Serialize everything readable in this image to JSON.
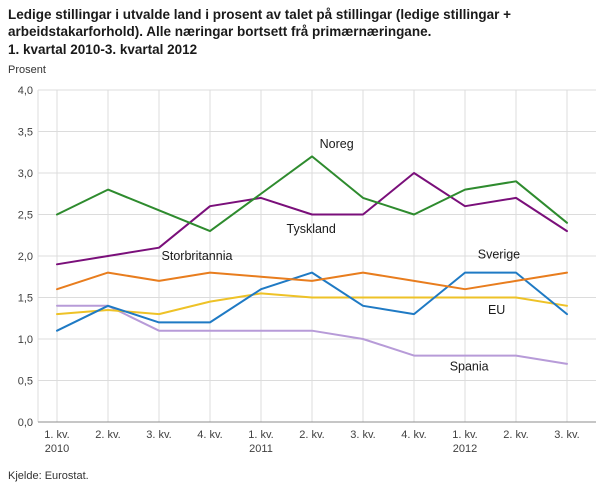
{
  "header": {
    "title": "Ledige stillingar i utvalde land i prosent av talet på stillingar (ledige stillingar +\narbeidstakarforhold). Alle næringar bortsett frå primærnæringane.\n1. kvartal 2010-3. kvartal 2012",
    "unit_label": "Prosent"
  },
  "footer": {
    "source": "Kjelde: Eurostat."
  },
  "chart_data": {
    "type": "line",
    "title": "Ledige stillingar i utvalde land i prosent av talet på stillingar (ledige stillingar + arbeidstakarforhold). Alle næringar bortsett frå primærnæringane. 1. kvartal 2010-3. kvartal 2012",
    "ylabel": "Prosent",
    "ylim": [
      0,
      4
    ],
    "grid": true,
    "legend_position": "inline-labels",
    "x_ticks": [
      {
        "label": "1. kv.",
        "year": "2010"
      },
      {
        "label": "2. kv."
      },
      {
        "label": "3. kv."
      },
      {
        "label": "4. kv."
      },
      {
        "label": "1. kv.",
        "year": "2011"
      },
      {
        "label": "2. kv."
      },
      {
        "label": "3. kv."
      },
      {
        "label": "4. kv."
      },
      {
        "label": "1. kv.",
        "year": "2012"
      },
      {
        "label": "2. kv."
      },
      {
        "label": "3. kv."
      }
    ],
    "y_ticks": {
      "values": [
        0,
        0.5,
        1.0,
        1.5,
        2.0,
        2.5,
        3.0,
        3.5,
        4.0
      ],
      "labels": [
        "0,0",
        "0,5",
        "1,0",
        "1,5",
        "2,0",
        "2,5",
        "3,0",
        "3,5",
        "4,0"
      ]
    },
    "series": [
      {
        "name": "Noreg",
        "color": "#2e8b2e",
        "values": [
          2.5,
          2.8,
          2.55,
          2.3,
          2.75,
          3.2,
          2.7,
          2.5,
          2.8,
          2.9,
          2.4
        ],
        "label_pos": {
          "x_index": 5.15,
          "y_value": 3.3
        }
      },
      {
        "name": "Tyskland",
        "color": "#7a0f7a",
        "values": [
          1.9,
          2.0,
          2.1,
          2.6,
          2.7,
          2.5,
          2.5,
          3.0,
          2.6,
          2.7,
          2.3
        ],
        "label_pos": {
          "x_index": 4.5,
          "y_value": 2.28
        }
      },
      {
        "name": "Storbritannia",
        "color": "#e87d1e",
        "values": [
          1.6,
          1.8,
          1.7,
          1.8,
          1.75,
          1.7,
          1.8,
          1.7,
          1.6,
          1.7,
          1.8
        ],
        "label_pos": {
          "x_index": 2.05,
          "y_value": 1.95
        }
      },
      {
        "name": "Sverige",
        "color": "#1f7ac4",
        "values": [
          1.1,
          1.4,
          1.2,
          1.2,
          1.6,
          1.8,
          1.4,
          1.3,
          1.8,
          1.8,
          1.3
        ],
        "label_pos": {
          "x_index": 8.25,
          "y_value": 1.97
        }
      },
      {
        "name": "EU",
        "color": "#eec227",
        "values": [
          1.3,
          1.35,
          1.3,
          1.45,
          1.55,
          1.5,
          1.5,
          1.5,
          1.5,
          1.5,
          1.4
        ],
        "label_pos": {
          "x_index": 8.45,
          "y_value": 1.3
        }
      },
      {
        "name": "Spania",
        "color": "#b79bd8",
        "values": [
          1.4,
          1.4,
          1.1,
          1.1,
          1.1,
          1.1,
          1.0,
          0.8,
          0.8,
          0.8,
          0.7
        ],
        "label_pos": {
          "x_index": 7.7,
          "y_value": 0.62
        }
      }
    ]
  }
}
